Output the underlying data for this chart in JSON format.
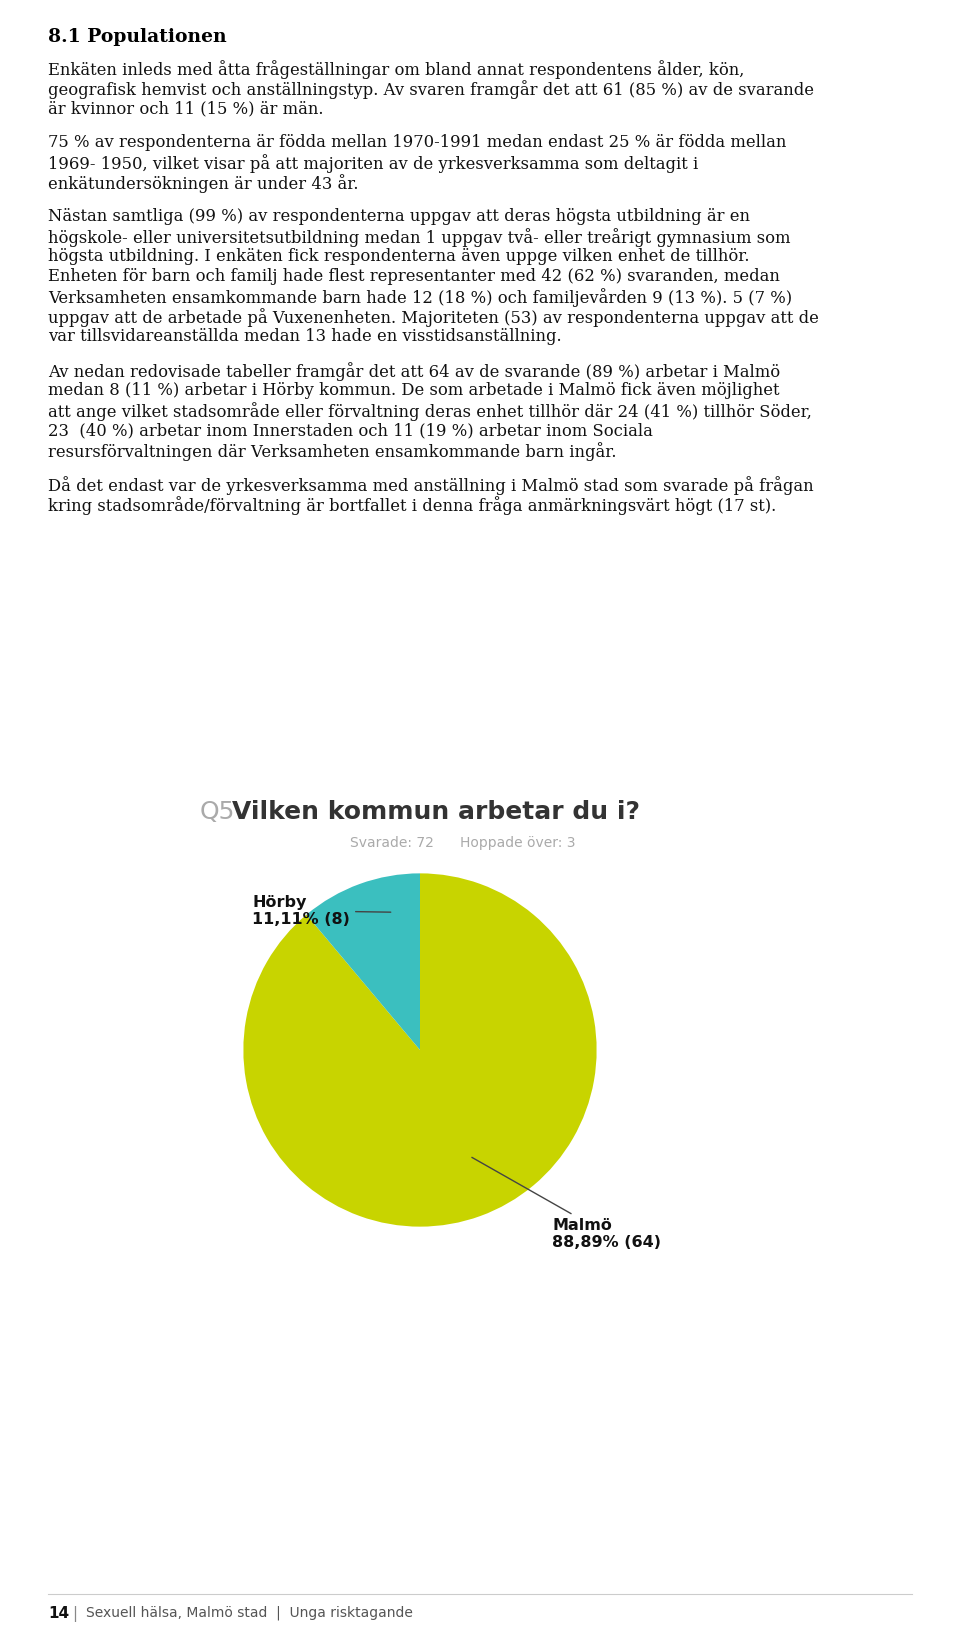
{
  "page_bg": "#ffffff",
  "heading": "8.1 Populationen",
  "body_paragraphs": [
    [
      "Enkäten inleds med åtta frågeställningar om bland annat respondentens ålder, kön,",
      "geografisk hemvist och anställningstyp. Av svaren framgår det att 61 (85 %) av de svarande",
      "är kvinnor och 11 (15 %) är män."
    ],
    [
      "75 % av respondenterna är födda mellan 1970-1991 medan endast 25 % är födda mellan",
      "1969- 1950, vilket visar på att majoriten av de yrkesverksamma som deltagit i",
      "enkätundersökningen är under 43 år."
    ],
    [
      "Nästan samtliga (99 %) av respondenterna uppgav att deras högsta utbildning är en",
      "högskole- eller universitetsutbildning medan 1 uppgav två- eller treårigt gymnasium som",
      "högsta utbildning. I enkäten fick respondenterna även uppge vilken enhet de tillhör.",
      "Enheten för barn och familj hade flest representanter med 42 (62 %) svaranden, medan",
      "Verksamheten ensamkommande barn hade 12 (18 %) och familjevården 9 (13 %). 5 (7 %)",
      "uppgav att de arbetade på Vuxenenheten. Majoriteten (53) av respondenterna uppgav att de",
      "var tillsvidareanställda medan 13 hade en visstidsanställning."
    ],
    [
      "Av nedan redovisade tabeller framgår det att 64 av de svarande (89 %) arbetar i Malmö",
      "medan 8 (11 %) arbetar i Hörby kommun. De som arbetade i Malmö fick även möjlighet",
      "att ange vilket stadsområde eller förvaltning deras enhet tillhör där 24 (41 %) tillhör Söder,",
      "23  (40 %) arbetar inom Innerstaden och 11 (19 %) arbetar inom Sociala",
      "resursförvaltningen där Verksamheten ensamkommande barn ingår."
    ],
    [
      "Då det endast var de yrkesverksamma med anställning i Malmö stad som svarade på frågan",
      "kring stadsområde/förvaltning är bortfallet i denna fråga anmärkningsvärt högt (17 st)."
    ]
  ],
  "chart_title_q": "Q5",
  "chart_title_main": "Vilken kommun arbetar du i?",
  "chart_subtitle_left": "Svarade: 72",
  "chart_subtitle_right": "Hoppade över: 3",
  "pie_values": [
    88.89,
    11.11
  ],
  "pie_label_malmo": "Malmö\n88,89% (64)",
  "pie_label_horby": "Hörby\n11,11% (8)",
  "pie_colors": [
    "#c8d400",
    "#3bbfbf"
  ],
  "footer_page": "14",
  "footer_sep": "|",
  "footer_text": "Sexuell hälsa, Malmö stad  |  Unga risktagande"
}
